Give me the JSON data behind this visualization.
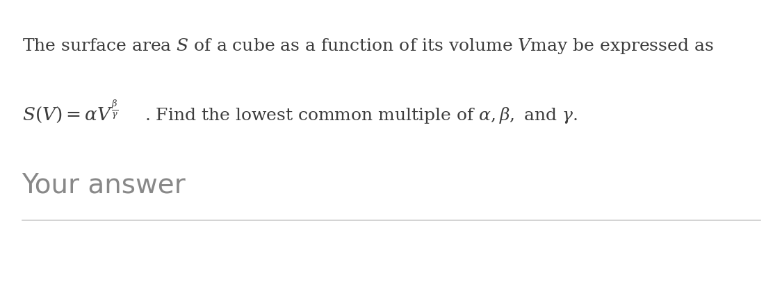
{
  "background_color": "#ffffff",
  "line1": "The surface area $S$ of a cube as a function of its volume $V$may be expressed as",
  "line2_formula": "$S(V) = \\alpha V^{\\frac{\\beta}{\\gamma}}$",
  "line2_rest": ". Find the lowest common multiple of $\\alpha, \\beta,$ and $\\gamma.$",
  "your_answer_label": "Your answer",
  "text_color": "#3d3d3d",
  "your_answer_color": "#888888",
  "line_color": "#cccccc",
  "font_size_body": 18,
  "font_size_your_answer": 28,
  "fig_width": 11.25,
  "fig_height": 4.27,
  "dpi": 100
}
